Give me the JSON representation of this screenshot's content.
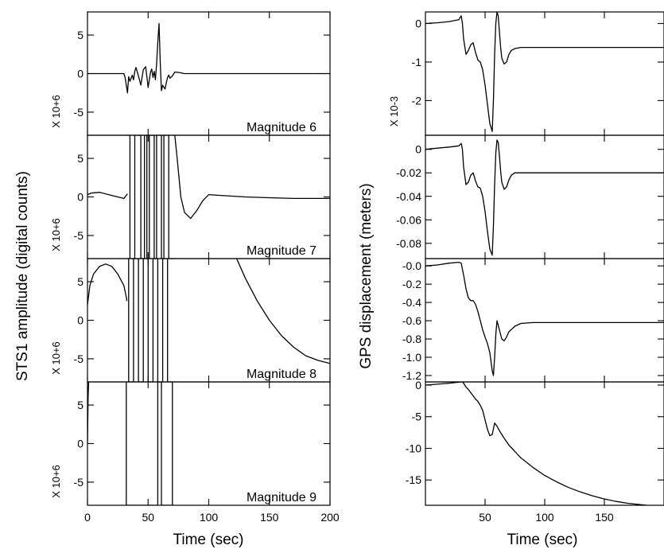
{
  "chart_data": [
    {
      "type": "line",
      "side": "left",
      "xlabel": "Time (sec)",
      "ylabel": "STS1 amplitude (digital counts)",
      "xlim": [
        0,
        200
      ],
      "xticks": [
        0,
        50,
        100,
        150,
        200
      ],
      "panels": [
        {
          "label": "Magnitude 6",
          "scale": "X 10+6",
          "ylim": [
            -8,
            8
          ],
          "yticks": [
            5,
            0,
            -5
          ],
          "series": [
            {
              "x": [
                0,
                30,
                31,
                33,
                34,
                35,
                37,
                38,
                39,
                40,
                42,
                44,
                46,
                48,
                50,
                52,
                53,
                54,
                55,
                56,
                57,
                58,
                59,
                60,
                61,
                62,
                63,
                64,
                65,
                66,
                67,
                68,
                70,
                72,
                75,
                80,
                90,
                200
              ],
              "y": [
                0,
                0,
                -0.5,
                -2.5,
                -0.4,
                -1,
                -0.2,
                -0.8,
                0.3,
                0.8,
                -0.3,
                -1.5,
                0.5,
                0.9,
                -1.8,
                0.2,
                0.6,
                -0.5,
                0.3,
                -0.8,
                1.2,
                4,
                6.5,
                1.5,
                -2.2,
                -1.5,
                -1.8,
                -2,
                -1.2,
                -0.5,
                -0.2,
                -0.6,
                -0.3,
                0.2,
                0.15,
                0,
                0,
                0
              ]
            }
          ]
        },
        {
          "label": "Magnitude 7",
          "scale": "X 10+6",
          "ylim": [
            -8,
            8
          ],
          "yticks": [
            5,
            0,
            -5
          ],
          "series": [
            {
              "x": [
                0,
                3,
                10,
                20,
                30,
                33
              ],
              "y": [
                0.3,
                0.5,
                0.6,
                0.2,
                -0.2,
                0.4
              ]
            },
            {
              "x": [
                33,
                35,
                35,
                39,
                39,
                44,
                44,
                47,
                47,
                49,
                49,
                51,
                51,
                55,
                55,
                57,
                57,
                61,
                61,
                63,
                63,
                67,
                67,
                72
              ],
              "y": [
                8,
                8,
                -8,
                -8,
                8,
                8,
                -8,
                -8,
                8,
                8,
                -8,
                -8,
                8,
                8,
                -8,
                -8,
                8,
                8,
                -8,
                -8,
                8,
                8,
                -8,
                -8
              ]
            },
            {
              "x": [
                72,
                74,
                77,
                80,
                85,
                90,
                95,
                100,
                110,
                130,
                150,
                170,
                200
              ],
              "y": [
                8,
                5,
                0,
                -2,
                -2.8,
                -1.8,
                -0.5,
                0.3,
                0.2,
                0,
                -0.1,
                -0.2,
                -0.2
              ]
            }
          ]
        },
        {
          "label": "Magnitude 8",
          "scale": "X 10+6",
          "ylim": [
            -8,
            8
          ],
          "yticks": [
            5,
            0,
            -5
          ],
          "series": [
            {
              "x": [
                0,
                2,
                5,
                10,
                15,
                20,
                25,
                30,
                32,
                32.5
              ],
              "y": [
                2,
                4.5,
                6,
                7,
                7.3,
                7,
                6,
                4.5,
                3,
                2.5
              ]
            },
            {
              "x": [
                32.5,
                34,
                34,
                38,
                38,
                42,
                42,
                46,
                46,
                50,
                50,
                54,
                54,
                58,
                58,
                62,
                62,
                66,
                66,
                70
              ],
              "y": [
                8,
                8,
                -8,
                -8,
                8,
                8,
                -8,
                -8,
                8,
                8,
                -8,
                -8,
                8,
                8,
                -8,
                -8,
                8,
                8,
                -8,
                -8
              ]
            },
            {
              "x": [
                123,
                130,
                140,
                150,
                160,
                170,
                180,
                190,
                200
              ],
              "y": [
                8,
                5.5,
                2.5,
                0,
                -2,
                -3.5,
                -4.6,
                -5.2,
                -5.6
              ]
            }
          ]
        },
        {
          "label": "Magnitude 9",
          "scale": "X 10+6",
          "ylim": [
            -8,
            8
          ],
          "yticks": [
            5,
            0,
            -5
          ],
          "series": [
            {
              "x": [
                0,
                0.5,
                1
              ],
              "y": [
                0,
                6,
                8
              ]
            },
            {
              "x": [
                32,
                32,
                58,
                58,
                61,
                61,
                70,
                70
              ],
              "y": [
                8,
                -8,
                -8,
                8,
                8,
                -8,
                -8,
                8
              ]
            }
          ]
        }
      ]
    },
    {
      "type": "line",
      "side": "right",
      "xlabel": "Time (sec)",
      "ylabel": "GPS displacement (meters)",
      "xlim": [
        0,
        200
      ],
      "xticks": [
        50,
        100,
        150
      ],
      "panels": [
        {
          "scale": "X 10-3",
          "ylim": [
            -2.9,
            0.3
          ],
          "yticks": [
            0,
            -1,
            -2
          ],
          "series": [
            {
              "x": [
                0,
                10,
                20,
                28,
                30,
                31,
                32,
                34,
                36,
                38,
                40,
                42,
                44,
                46,
                48,
                50,
                52,
                54,
                56,
                57,
                58,
                59,
                60,
                61,
                62,
                63,
                64,
                66,
                68,
                70,
                72,
                75,
                80,
                90,
                100,
                150,
                200
              ],
              "y": [
                0,
                0.02,
                0.05,
                0.1,
                0.2,
                0,
                -0.4,
                -0.8,
                -0.7,
                -0.55,
                -0.5,
                -0.75,
                -0.95,
                -1.0,
                -1.2,
                -1.6,
                -2.1,
                -2.6,
                -2.8,
                -2.0,
                -0.8,
                0,
                0.3,
                0.2,
                -0.2,
                -0.6,
                -0.9,
                -1.05,
                -1.0,
                -0.8,
                -0.7,
                -0.65,
                -0.62,
                -0.62,
                -0.62,
                -0.62,
                -0.62
              ]
            }
          ]
        },
        {
          "ylim": [
            -0.093,
            0.012
          ],
          "yticks": [
            0.0,
            -0.02,
            -0.04,
            -0.06,
            -0.08
          ],
          "series": [
            {
              "x": [
                0,
                10,
                20,
                28,
                30,
                31,
                32,
                34,
                36,
                38,
                40,
                42,
                44,
                46,
                48,
                50,
                52,
                54,
                56,
                57,
                58,
                59,
                60,
                61,
                62,
                63,
                64,
                66,
                68,
                70,
                72,
                75,
                80,
                90,
                100,
                150,
                200
              ],
              "y": [
                0,
                0.001,
                0.002,
                0.003,
                0.005,
                0,
                -0.015,
                -0.03,
                -0.028,
                -0.022,
                -0.02,
                -0.027,
                -0.032,
                -0.033,
                -0.04,
                -0.053,
                -0.07,
                -0.085,
                -0.09,
                -0.065,
                -0.03,
                -0.003,
                0.008,
                0.006,
                -0.005,
                -0.018,
                -0.028,
                -0.034,
                -0.032,
                -0.026,
                -0.022,
                -0.02,
                -0.02,
                -0.02,
                -0.02,
                -0.02,
                -0.02
              ]
            }
          ]
        },
        {
          "ylim": [
            -1.27,
            0.08
          ],
          "yticks": [
            -0.0,
            -0.2,
            -0.4,
            -0.6,
            -0.8,
            -1.0,
            -1.2
          ],
          "yticklabels": [
            "-0.0",
            "-0.2",
            "-0.4",
            "-0.6",
            "-0.8",
            "-1.0",
            "-1.2"
          ],
          "series": [
            {
              "x": [
                0,
                10,
                20,
                28,
                30,
                32,
                34,
                36,
                38,
                40,
                42,
                44,
                46,
                48,
                50,
                52,
                54,
                55,
                56,
                57,
                58,
                59,
                60,
                62,
                64,
                66,
                68,
                70,
                75,
                80,
                90,
                100,
                150,
                200
              ],
              "y": [
                0,
                0.01,
                0.03,
                0.04,
                0.03,
                -0.1,
                -0.25,
                -0.35,
                -0.38,
                -0.38,
                -0.42,
                -0.5,
                -0.6,
                -0.7,
                -0.78,
                -0.85,
                -0.95,
                -1.05,
                -1.15,
                -1.2,
                -1.0,
                -0.75,
                -0.6,
                -0.7,
                -0.8,
                -0.82,
                -0.78,
                -0.72,
                -0.66,
                -0.63,
                -0.62,
                -0.62,
                -0.62,
                -0.62
              ]
            }
          ]
        },
        {
          "ylim": [
            -19,
            0.5
          ],
          "yticks": [
            0,
            -5,
            -10,
            -15
          ],
          "series": [
            {
              "x": [
                0,
                20,
                30,
                31,
                32,
                33,
                34,
                36,
                38,
                40,
                42,
                44,
                46,
                48,
                50,
                52,
                54,
                56,
                58,
                60,
                62,
                64,
                66,
                70,
                75,
                80,
                90,
                100,
                110,
                120,
                130,
                140,
                150,
                160,
                170,
                180,
                190,
                200
              ],
              "y": [
                0,
                0.3,
                0.5,
                0.5,
                0.3,
                0,
                -0.3,
                -0.7,
                -1.2,
                -1.7,
                -2.2,
                -2.6,
                -3.2,
                -4,
                -5.5,
                -7,
                -8,
                -7.8,
                -6,
                -6.5,
                -7.2,
                -7.8,
                -8.4,
                -9.5,
                -10.5,
                -11.5,
                -13,
                -14.3,
                -15.3,
                -16.2,
                -16.9,
                -17.5,
                -18,
                -18.4,
                -18.7,
                -18.9,
                -19.1,
                -19.2
              ]
            }
          ]
        }
      ]
    }
  ]
}
